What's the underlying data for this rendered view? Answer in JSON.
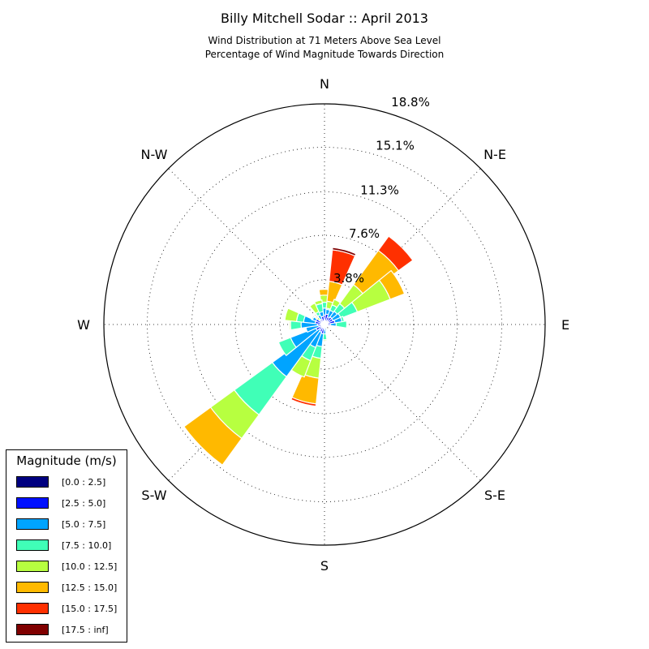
{
  "chart_data": {
    "type": "windrose",
    "title": "Billy Mitchell Sodar :: April 2013",
    "subtitle_lines": [
      "Wind Distribution at 71 Meters Above Sea Level",
      "Percentage of Wind Magnitude Towards Direction"
    ],
    "radial_ticks": [
      3.8,
      7.6,
      11.3,
      15.1,
      18.8
    ],
    "radial_tick_labels": [
      "3.8%",
      "7.6%",
      "11.3%",
      "15.1%",
      "18.8%"
    ],
    "r_max": 18.8,
    "compass_labels": [
      {
        "angle": 0,
        "label": "N"
      },
      {
        "angle": 45,
        "label": "N-E"
      },
      {
        "angle": 90,
        "label": "E"
      },
      {
        "angle": 135,
        "label": "S-E"
      },
      {
        "angle": 180,
        "label": "S"
      },
      {
        "angle": 225,
        "label": "S-W"
      },
      {
        "angle": 270,
        "label": "W"
      },
      {
        "angle": 315,
        "label": "N-W"
      }
    ],
    "legend": {
      "title": "Magnitude (m/s)",
      "placement": "lower-left",
      "entries": [
        {
          "label": "[0.0 : 2.5]",
          "color": "#000080"
        },
        {
          "label": "[2.5 : 5.0]",
          "color": "#0010ff"
        },
        {
          "label": "[5.0 : 7.5]",
          "color": "#00a4ff"
        },
        {
          "label": "[7.5 : 10.0]",
          "color": "#40ffb7"
        },
        {
          "label": "[10.0 : 12.5]",
          "color": "#b7ff40"
        },
        {
          "label": "[12.5 : 15.0]",
          "color": "#ffb900"
        },
        {
          "label": "[15.0 : 17.5]",
          "color": "#ff3000"
        },
        {
          "label": "[17.5 : inf]",
          "color": "#800000"
        }
      ]
    },
    "sector_width_deg": 18,
    "directions": [
      {
        "dir": 0,
        "cum": [
          0.3,
          0.8,
          1.4,
          1.9,
          2.5,
          3.0,
          3.0,
          3.0
        ]
      },
      {
        "dir": 15,
        "cum": [
          0.3,
          0.9,
          1.3,
          1.4,
          2.0,
          3.7,
          6.4,
          6.6
        ]
      },
      {
        "dir": 30,
        "cum": [
          0.3,
          0.7,
          1.3,
          1.8,
          2.3,
          2.3,
          2.3,
          2.3
        ]
      },
      {
        "dir": 45,
        "cum": [
          0.4,
          0.8,
          1.4,
          2.2,
          4.2,
          7.8,
          9.3,
          9.3
        ]
      },
      {
        "dir": 60,
        "cum": [
          0.4,
          0.8,
          1.5,
          3.0,
          6.0,
          7.3,
          7.3,
          7.3
        ]
      },
      {
        "dir": 75,
        "cum": [
          0.3,
          0.9,
          1.5,
          1.7,
          1.7,
          1.7,
          1.7,
          1.7
        ]
      },
      {
        "dir": 90,
        "cum": [
          0.2,
          0.5,
          1.0,
          1.9,
          1.9,
          1.9,
          1.9,
          1.9
        ]
      },
      {
        "dir": 165,
        "cum": [
          0.2,
          0.3,
          0.5,
          0.5,
          0.5,
          0.5,
          0.5,
          0.5
        ]
      },
      {
        "dir": 180,
        "cum": [
          0.2,
          0.4,
          0.8,
          1.3,
          1.4,
          1.4,
          1.4,
          1.4
        ]
      },
      {
        "dir": 195,
        "cum": [
          0.3,
          0.8,
          1.9,
          2.9,
          4.6,
          6.8,
          7.0,
          7.0
        ]
      },
      {
        "dir": 210,
        "cum": [
          0.2,
          0.7,
          2.1,
          3.3,
          4.8,
          4.8,
          4.8,
          4.8
        ]
      },
      {
        "dir": 225,
        "cum": [
          0.3,
          0.6,
          5.5,
          9.5,
          12.0,
          14.8,
          14.8,
          14.8
        ]
      },
      {
        "dir": 240,
        "cum": [
          0.3,
          0.8,
          3.1,
          4.2,
          4.2,
          4.2,
          4.2,
          4.2
        ]
      },
      {
        "dir": 255,
        "cum": [
          0.2,
          0.5,
          1.6,
          1.6,
          1.6,
          1.6,
          1.6,
          1.6
        ]
      },
      {
        "dir": 270,
        "cum": [
          0.3,
          0.6,
          2.0,
          2.9,
          3.0,
          3.0,
          3.0,
          3.0
        ]
      },
      {
        "dir": 285,
        "cum": [
          0.3,
          0.8,
          1.8,
          2.4,
          3.4,
          3.4,
          3.4,
          3.4
        ]
      },
      {
        "dir": 300,
        "cum": [
          0.3,
          0.8,
          1.1,
          1.2,
          1.2,
          1.2,
          1.2,
          1.2
        ]
      },
      {
        "dir": 315,
        "cum": [
          0.3,
          0.5,
          0.6,
          0.6,
          0.8,
          0.9,
          1.0,
          1.05
        ]
      },
      {
        "dir": 330,
        "cum": [
          0.2,
          0.5,
          0.9,
          1.2,
          2.0,
          2.0,
          2.0,
          2.0
        ]
      },
      {
        "dir": 345,
        "cum": [
          0.3,
          0.7,
          1.1,
          1.8,
          2.1,
          2.1,
          2.1,
          2.1
        ]
      }
    ]
  }
}
